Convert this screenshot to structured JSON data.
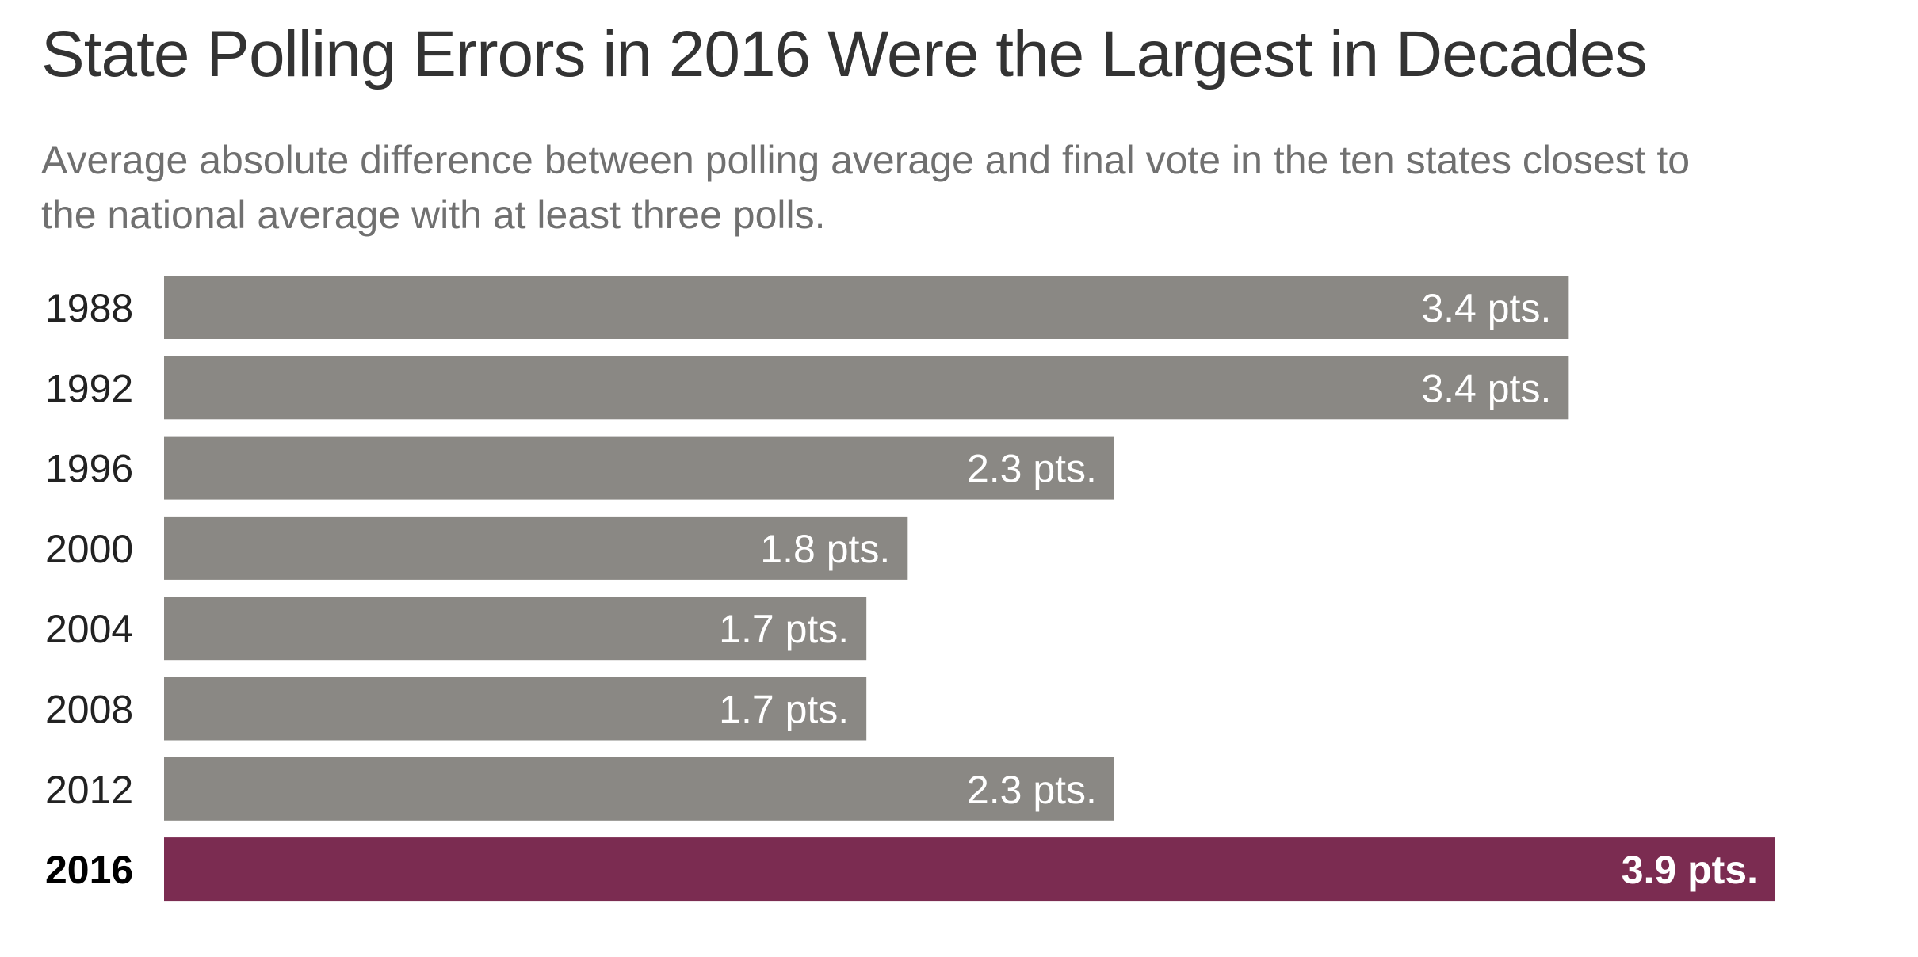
{
  "title": "State Polling Errors in 2016 Were the Largest in Decades",
  "subtitle": "Average absolute difference between polling average and final vote in the ten states closest to the national average with at least three polls.",
  "colors": {
    "bar": "#8a8884",
    "highlight": "#7b2c51"
  },
  "chart_data": {
    "type": "bar",
    "orientation": "horizontal",
    "categories": [
      "1988",
      "1992",
      "1996",
      "2000",
      "2004",
      "2008",
      "2012",
      "2016"
    ],
    "values": [
      3.4,
      3.4,
      2.3,
      1.8,
      1.7,
      1.7,
      2.3,
      3.9
    ],
    "data_labels": [
      "3.4 pts.",
      "3.4 pts.",
      "2.3 pts.",
      "1.8 pts.",
      "1.7 pts.",
      "1.7 pts.",
      "2.3 pts.",
      "3.9 pts."
    ],
    "highlight_category": "2016",
    "xlim": [
      0,
      3.9
    ],
    "grid": false,
    "legend": "none"
  }
}
